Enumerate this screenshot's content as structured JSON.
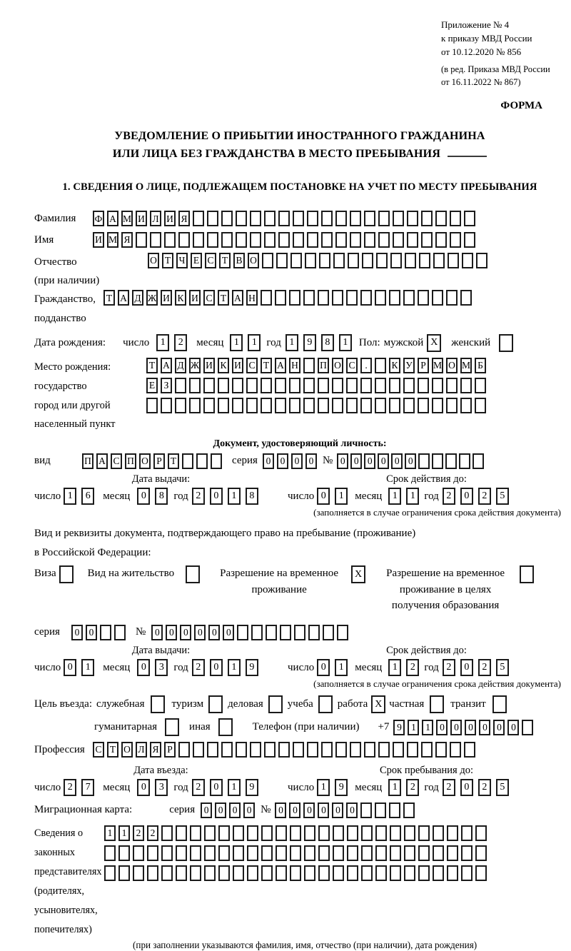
{
  "header": {
    "appendix_lines": [
      "Приложение № 4",
      "к приказу МВД России",
      "от 10.12.2020 № 856"
    ],
    "revision_lines": [
      "(в ред. Приказа МВД России",
      "от 16.11.2022 № 867)"
    ],
    "form_label": "ФОРМА"
  },
  "title": {
    "line1": "УВЕДОМЛЕНИЕ О ПРИБЫТИИ ИНОСТРАННОГО ГРАЖДАНИНА",
    "line2": "ИЛИ ЛИЦА БЕЗ ГРАЖДАНСТВА В МЕСТО ПРЕБЫВАНИЯ"
  },
  "section1_heading": "1. СВЕДЕНИЯ О ЛИЦЕ, ПОДЛЕЖАЩЕМ ПОСТАНОВКЕ НА УЧЕТ ПО МЕСТУ ПРЕБЫВАНИЯ",
  "date_labels": {
    "day": "число",
    "month": "месяц",
    "year": "год"
  },
  "fields": {
    "surname": {
      "label": "Фамилия",
      "value": "ФАМИЛИЯ",
      "length": 27
    },
    "given_name": {
      "label": "Имя",
      "value": "ИМЯ",
      "length": 27
    },
    "patronymic": {
      "label": "Отчество",
      "label2": "(при наличии)",
      "value": "ОТЧЕСТВО",
      "length": 24
    },
    "citizenship": {
      "label": "Гражданство,",
      "label2": "подданство",
      "value": "ТАДЖИКИСТАН",
      "length": 26
    },
    "birth_date": {
      "label": "Дата рождения:",
      "day": "12",
      "month": "11",
      "year": "1981",
      "sex_label": "Пол:",
      "male_label": "мужской",
      "male": "X",
      "female_label": "женский",
      "female": ""
    },
    "birth_place": {
      "label1": "Место рождения:",
      "label2": "государство",
      "label3": "город или другой",
      "label4": "населенный пункт",
      "row1": {
        "value": "ТАДЖИКИСТАН ПОС. КУРМОМБ",
        "length": 24
      },
      "row2": {
        "value": "ЕЗ",
        "length": 24
      },
      "row3": {
        "value": "",
        "length": 24
      }
    },
    "identity_doc": {
      "heading": "Документ, удостоверяющий личность:",
      "kind_label": "вид",
      "kind": {
        "value": "ПАСПОРТ",
        "length": 10
      },
      "series_label": "серия",
      "series": {
        "value": "0000",
        "length": 4
      },
      "number_label": "№",
      "number": {
        "value": "000000",
        "length": 11
      },
      "issue_heading": "Дата выдачи:",
      "issue": {
        "day": "16",
        "month": "08",
        "year": "2018"
      },
      "expiry_heading": "Срок действия до:",
      "expiry": {
        "day": "01",
        "month": "11",
        "year": "2025"
      },
      "expiry_note": "(заполняется в случае ограничения срока действия документа)"
    },
    "residence_doc": {
      "intro1": "Вид и реквизиты документа, подтверждающего право на пребывание (проживание)",
      "intro2": "в Российской Федерации:",
      "options": [
        {
          "label": "Виза",
          "checked": ""
        },
        {
          "label": "Вид на жительство",
          "checked": ""
        },
        {
          "label": "Разрешение на временное проживание",
          "checked": "X"
        },
        {
          "label": "Разрешение на временное проживание в целях получения образования",
          "checked": ""
        }
      ],
      "series_label": "серия",
      "series": {
        "value": "00",
        "length": 4
      },
      "number_label": "№",
      "number": {
        "value": "000000",
        "length": 14
      },
      "issue_heading": "Дата выдачи:",
      "issue": {
        "day": "01",
        "month": "03",
        "year": "2019"
      },
      "expiry_heading": "Срок действия до:",
      "expiry": {
        "day": "01",
        "month": "12",
        "year": "2025"
      },
      "expiry_note": "(заполняется в случае ограничения срока действия документа)"
    },
    "visit_purpose": {
      "label": "Цель въезда:",
      "options_row1": [
        {
          "label": "служебная",
          "checked": ""
        },
        {
          "label": "туризм",
          "checked": ""
        },
        {
          "label": "деловая",
          "checked": ""
        },
        {
          "label": "учеба",
          "checked": ""
        },
        {
          "label": "работа",
          "checked": "X"
        },
        {
          "label": "частная",
          "checked": ""
        },
        {
          "label": "транзит",
          "checked": ""
        }
      ],
      "options_row2": [
        {
          "label": "гуманитарная",
          "checked": ""
        },
        {
          "label": "иная",
          "checked": ""
        }
      ],
      "phone_label": "Телефон (при наличии)",
      "phone_prefix": "+7",
      "phone": {
        "value": "911000000",
        "length": 10
      }
    },
    "profession": {
      "label": "Профессия",
      "value": "СТОЛЯР",
      "length": 27
    },
    "entry": {
      "left_heading": "Дата въезда:",
      "left": {
        "day": "27",
        "month": "03",
        "year": "2019"
      },
      "right_heading": "Срок пребывания до:",
      "right": {
        "day": "19",
        "month": "12",
        "year": "2025"
      }
    },
    "migration_card": {
      "label": "Миграционная карта:",
      "series_label": "серия",
      "series": {
        "value": "0000",
        "length": 4
      },
      "number_label": "№",
      "number": {
        "value": "000000",
        "length": 10
      }
    },
    "legal_representatives": {
      "label1": "Сведения о",
      "label2": "законных",
      "label3": "представителях",
      "label4": "(родителях,",
      "label5": "усыновителях,",
      "label6": "попечителях)",
      "row1": {
        "value": "1122",
        "length": 27
      },
      "row2": {
        "value": "",
        "length": 27
      },
      "row3": {
        "value": "",
        "length": 27
      },
      "note": "(при заполнении указываются фамилия, имя, отчество (при наличии), дата рождения)"
    }
  }
}
